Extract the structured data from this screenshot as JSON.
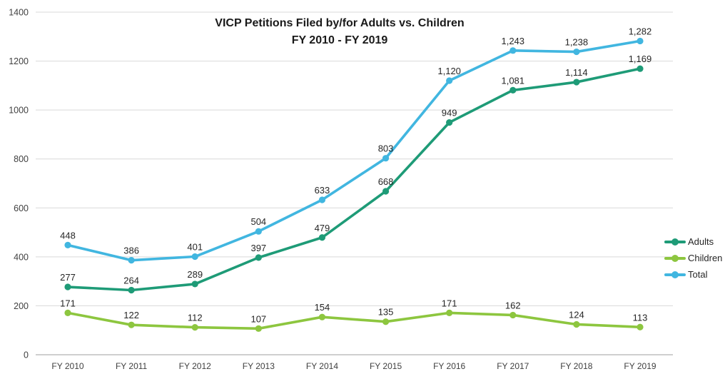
{
  "title": {
    "line1": "VICP Petitions Filed by/for Adults vs. Children",
    "line2": "FY 2010 - FY 2019"
  },
  "legend": {
    "position": "right",
    "items": [
      {
        "label": "Adults",
        "color": "#1E9B77"
      },
      {
        "label": "Children",
        "color": "#8DC63F"
      },
      {
        "label": "Total",
        "color": "#41B6E0"
      }
    ]
  },
  "chart_data": {
    "type": "line",
    "title": "VICP Petitions Filed by/for Adults vs. Children FY 2010 - FY 2019",
    "categories": [
      "FY 2010",
      "FY 2011",
      "FY 2012",
      "FY 2013",
      "FY 2014",
      "FY 2015",
      "FY 2016",
      "FY 2017",
      "FY 2018",
      "FY 2019"
    ],
    "series": [
      {
        "name": "Children",
        "color": "#8DC63F",
        "values": [
          171,
          122,
          112,
          107,
          154,
          135,
          171,
          162,
          124,
          113
        ]
      },
      {
        "name": "Adults",
        "color": "#1E9B77",
        "values": [
          277,
          264,
          289,
          397,
          479,
          668,
          949,
          1081,
          1114,
          1169
        ]
      },
      {
        "name": "Total",
        "color": "#41B6E0",
        "values": [
          448,
          386,
          401,
          504,
          633,
          803,
          1120,
          1243,
          1238,
          1282
        ]
      }
    ],
    "xlabel": "",
    "ylabel": "",
    "ylim": [
      0,
      1400
    ],
    "yticks": [
      0,
      200,
      400,
      600,
      800,
      1000,
      1200,
      1400
    ],
    "grid": true,
    "data_labels": true,
    "legend_position": "right"
  },
  "colors": {
    "gridline": "#d9d9d9",
    "axis_line": "#bfbfbf",
    "tick_text": "#404040",
    "data_label_text": "#262626",
    "background": "#ffffff"
  }
}
